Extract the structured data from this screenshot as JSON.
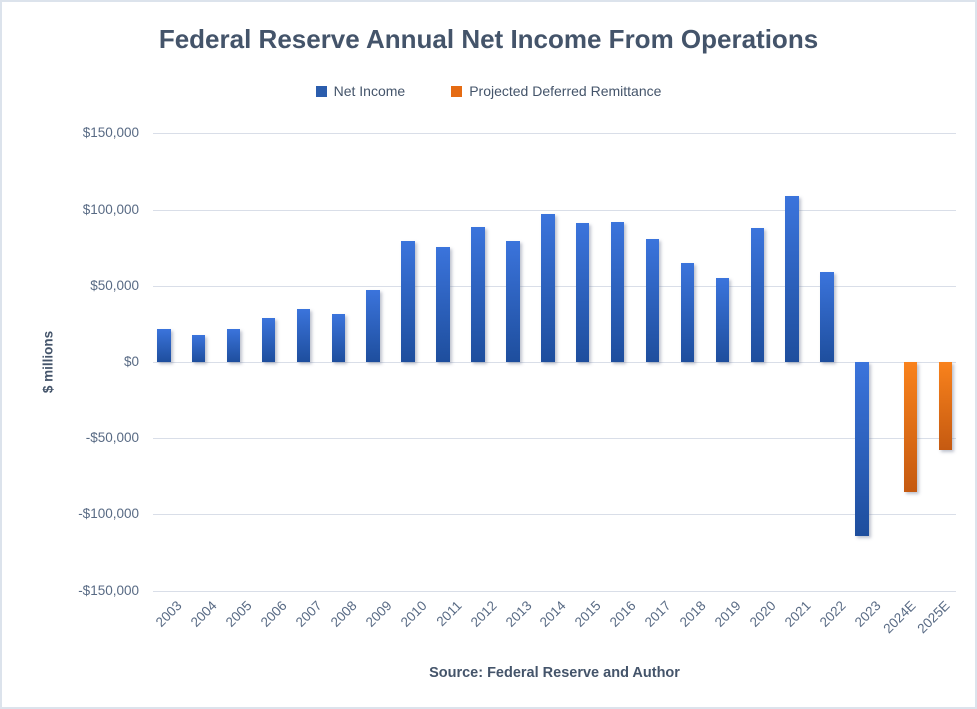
{
  "chart_data": {
    "type": "bar",
    "title": "Federal Reserve Annual Net Income From Operations",
    "ylabel": "$ millions",
    "source_note": "Source: Federal Reserve and Author",
    "legend_position": "top",
    "grid": true,
    "ylim": [
      -150000,
      150000
    ],
    "ytick_step": 50000,
    "yticks": [
      {
        "value": 150000,
        "label": "$150,000"
      },
      {
        "value": 100000,
        "label": "$100,000"
      },
      {
        "value": 50000,
        "label": "$50,000"
      },
      {
        "value": 0,
        "label": "$0"
      },
      {
        "value": -50000,
        "label": "-$50,000"
      },
      {
        "value": -100000,
        "label": "-$100,000"
      },
      {
        "value": -150000,
        "label": "-$150,000"
      }
    ],
    "categories": [
      "2003",
      "2004",
      "2005",
      "2006",
      "2007",
      "2008",
      "2009",
      "2010",
      "2011",
      "2012",
      "2013",
      "2014",
      "2015",
      "2016",
      "2017",
      "2018",
      "2019",
      "2020",
      "2021",
      "2022",
      "2023",
      "2024E",
      "2025E"
    ],
    "series": [
      {
        "name": "Net Income",
        "legend_color": "#2b5dad",
        "color_top": "#3b74dc",
        "color_bottom": "#1e4e9d",
        "values": [
          22000,
          18000,
          21500,
          29000,
          34600,
          31700,
          47400,
          79300,
          75400,
          88400,
          79600,
          96900,
          91500,
          92000,
          80700,
          65300,
          55000,
          88000,
          109000,
          58800,
          -114300,
          null,
          null
        ]
      },
      {
        "name": "Projected Deferred Remittance",
        "legend_color": "#e56b13",
        "color_top": "#f9821c",
        "color_bottom": "#c55a11",
        "values": [
          null,
          null,
          null,
          null,
          null,
          null,
          null,
          null,
          null,
          null,
          null,
          null,
          null,
          null,
          null,
          null,
          null,
          null,
          null,
          null,
          null,
          -85000,
          -58000
        ]
      }
    ]
  }
}
